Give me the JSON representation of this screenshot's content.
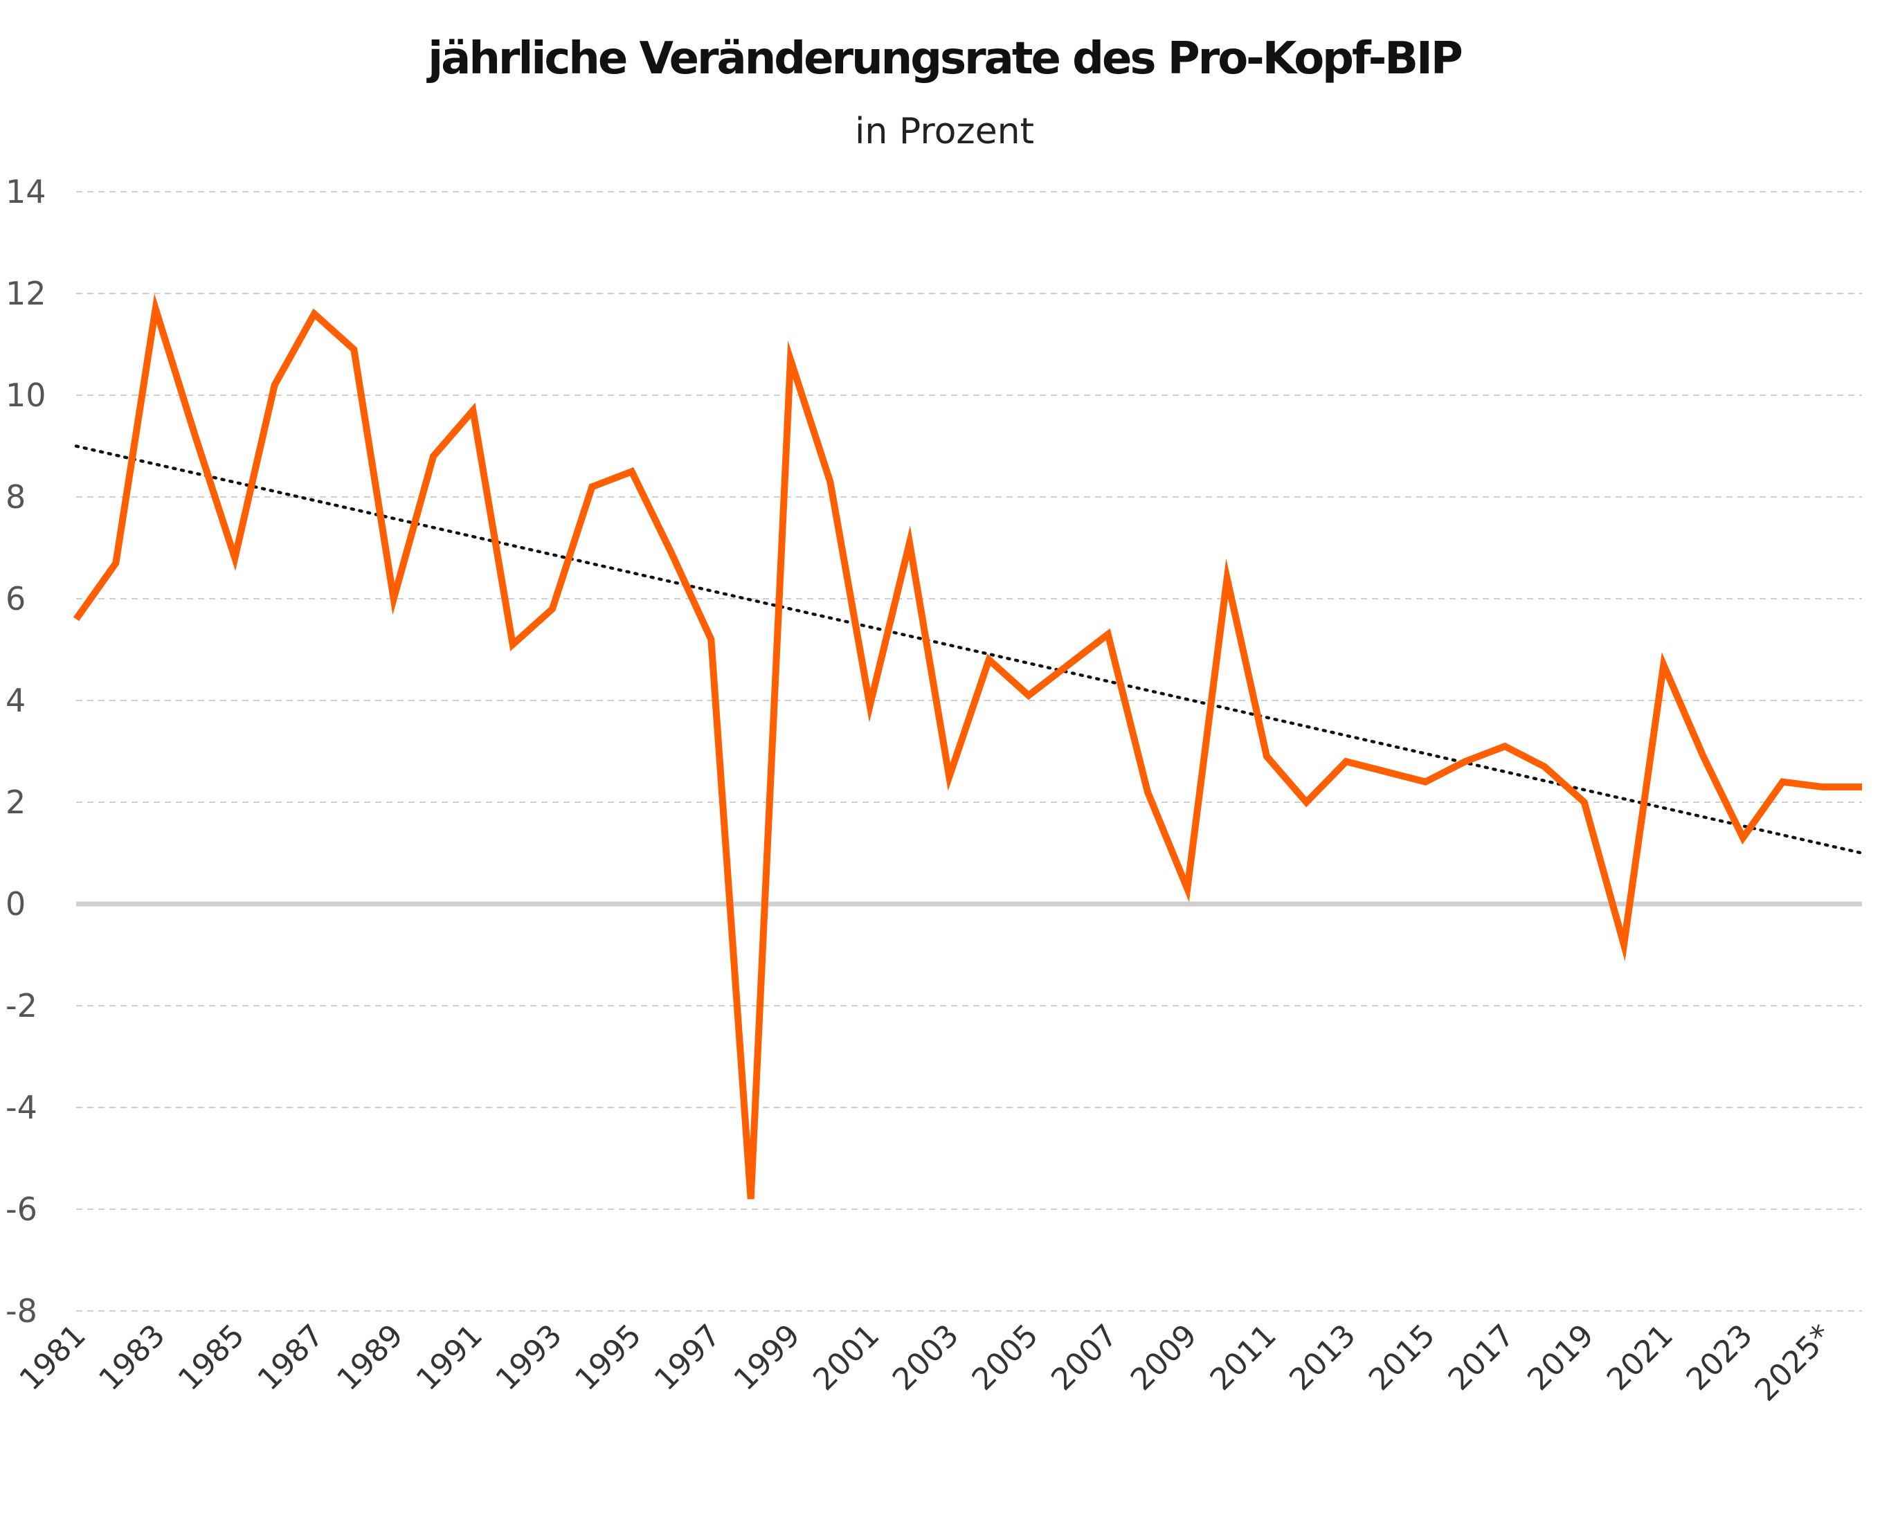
{
  "chart_data": {
    "type": "line",
    "title": "jährliche Veränderungsrate des Pro-Kopf-BIP",
    "subtitle": "in Prozent",
    "xlabel": "",
    "ylabel": "",
    "ylim": [
      -8,
      14
    ],
    "yticks": [
      14,
      12,
      10,
      8,
      6,
      4,
      2,
      0,
      -2,
      -4,
      -6,
      -8
    ],
    "grid": true,
    "legend": "none",
    "x_tick_labels": [
      "1981",
      "1983",
      "1985",
      "1987",
      "1989",
      "1991",
      "1993",
      "1995",
      "1997",
      "1999",
      "2001",
      "2003",
      "2005",
      "2007",
      "2009",
      "2011",
      "2013",
      "2015",
      "2017",
      "2019",
      "2021",
      "2023",
      "2025*"
    ],
    "x": [
      1981,
      1982,
      1983,
      1984,
      1985,
      1986,
      1987,
      1988,
      1989,
      1990,
      1991,
      1992,
      1993,
      1994,
      1995,
      1996,
      1997,
      1998,
      1999,
      2000,
      2001,
      2002,
      2003,
      2004,
      2005,
      2006,
      2007,
      2008,
      2009,
      2010,
      2011,
      2012,
      2013,
      2014,
      2015,
      2016,
      2017,
      2018,
      2019,
      2020,
      2021,
      2022,
      2023,
      2024,
      2025,
      2026
    ],
    "series": [
      {
        "values": [
          5.6,
          6.7,
          11.7,
          9.2,
          6.8,
          10.2,
          11.6,
          10.9,
          6.0,
          8.8,
          9.7,
          5.1,
          5.8,
          8.2,
          8.5,
          6.9,
          5.2,
          -5.8,
          10.7,
          8.3,
          3.9,
          7.1,
          2.5,
          4.8,
          4.1,
          4.7,
          5.3,
          2.2,
          0.3,
          6.4,
          2.9,
          2.0,
          2.8,
          2.6,
          2.4,
          2.8,
          3.1,
          2.7,
          2.0,
          -0.8,
          4.7,
          2.9,
          1.3,
          2.4,
          2.3,
          2.3
        ],
        "color": "#ff5f00"
      }
    ],
    "trendline": {
      "style": "dotted",
      "color": "#111111",
      "from": [
        1981,
        9.0
      ],
      "to": [
        2026,
        1.0
      ]
    },
    "zero_line_color": "#d0d0d0",
    "grid_color": "#cfcfcf"
  }
}
